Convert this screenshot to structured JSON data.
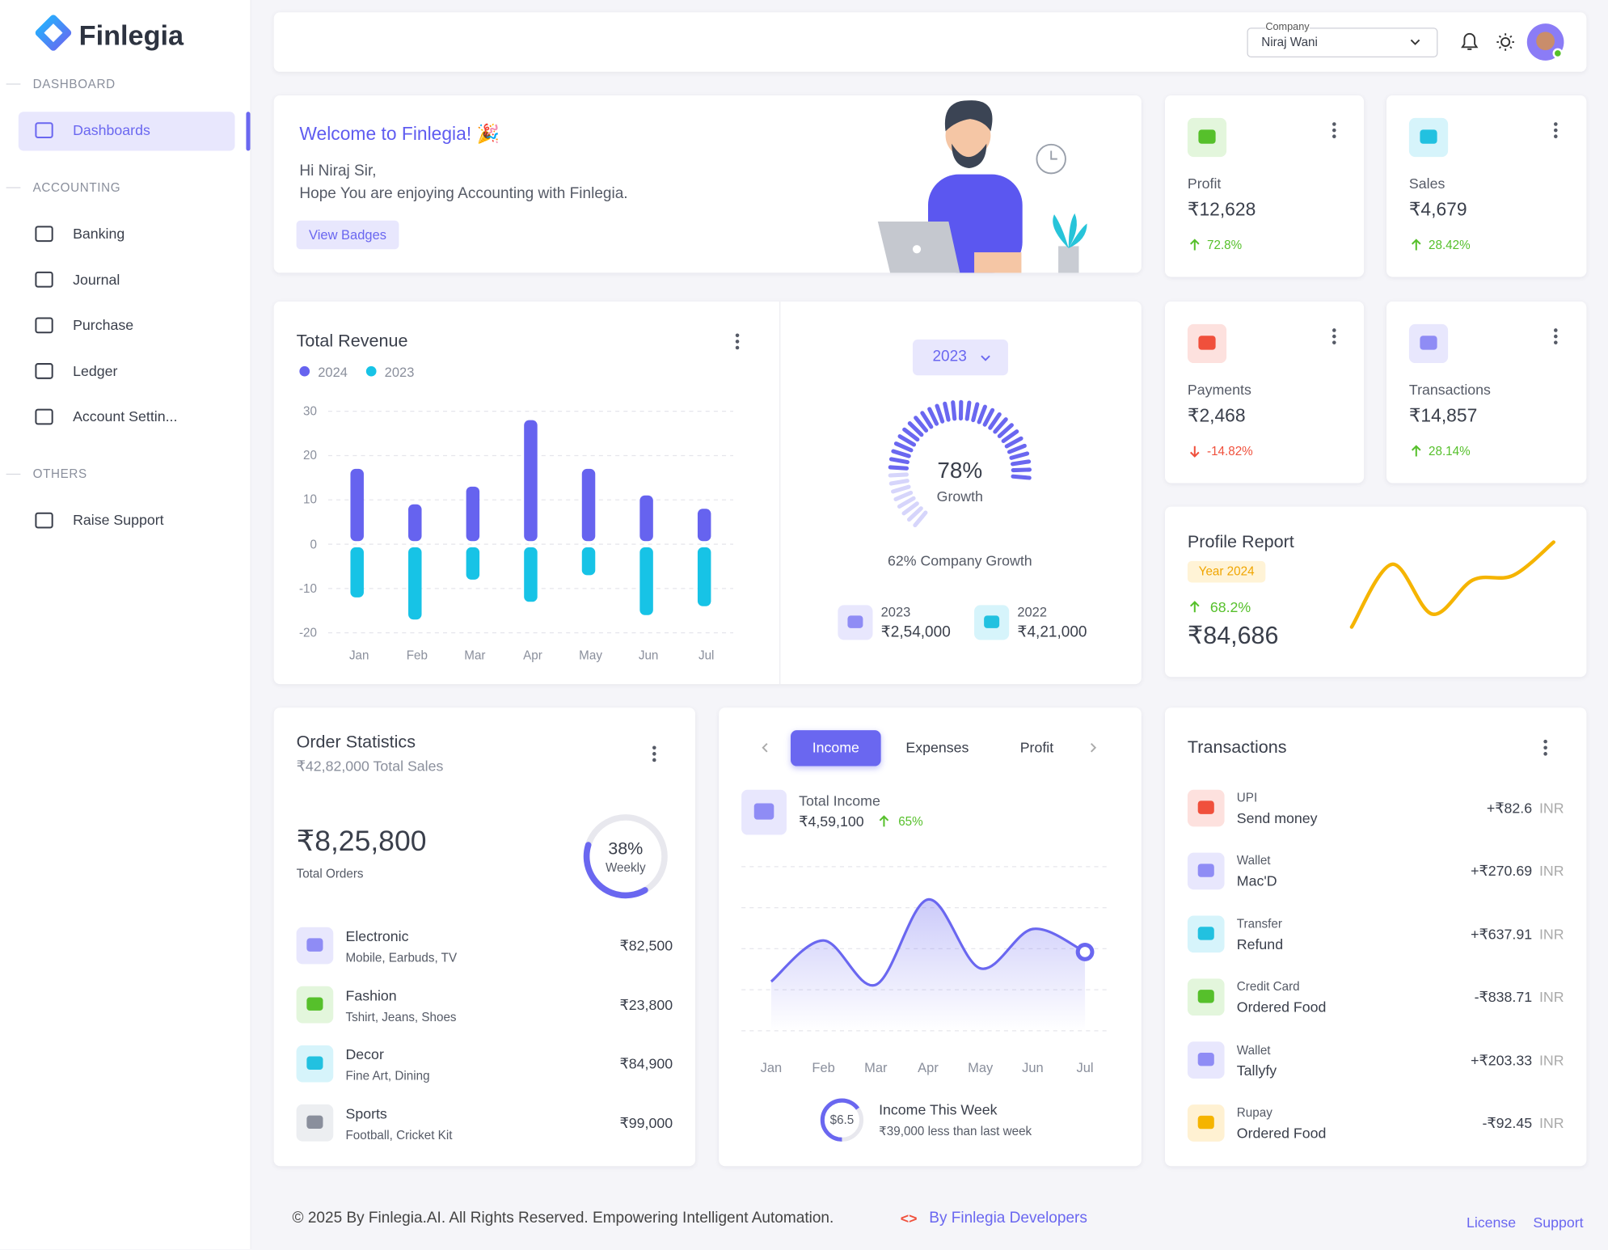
{
  "sidebar": {
    "brand": "Finlegia",
    "sections": [
      {
        "title": "DASHBOARD",
        "items": [
          "Dashboards"
        ]
      },
      {
        "title": "ACCOUNTING",
        "items": [
          "Banking",
          "Journal",
          "Purchase",
          "Ledger",
          "Account Settin..."
        ]
      },
      {
        "title": "OTHERS",
        "items": [
          "Raise Support"
        ]
      }
    ]
  },
  "header": {
    "company_label": "Company",
    "company": "Niraj Wani"
  },
  "welcome": {
    "title": "Welcome to Finlegia! 🎉",
    "greeting": "Hi Niraj Sir,",
    "message": "Hope You are enjoying Accounting with Finlegia.",
    "button": "View Badges"
  },
  "stat_cards": [
    {
      "label": "Profit",
      "value": "₹12,628",
      "change": "72.8%"
    },
    {
      "label": "Sales",
      "value": "₹4,679",
      "change": "28.42%"
    },
    {
      "label": "Payments",
      "value": "₹2,468",
      "change": "-14.82%"
    },
    {
      "label": "Transactions",
      "value": "₹14,857",
      "change": "28.14%"
    }
  ],
  "growth": {
    "year": "2023",
    "gauge": {
      "value": 78,
      "label": "78%"
    },
    "gauge_caption": "Growth",
    "caption": "62% Company Growth",
    "stats": [
      {
        "year": "2023",
        "amount": "₹2,54,000"
      },
      {
        "year": "2022",
        "amount": "₹4,21,000"
      }
    ]
  },
  "profile_report": {
    "title": "Profile Report",
    "year": "Year 2024",
    "change": "68.2%",
    "amount": "₹84,686"
  },
  "order_statistics": {
    "title": "Order Statistics",
    "subtitle": "₹42,82,000 Total Sales",
    "total": "₹8,25,800",
    "total_label": "Total Orders",
    "donut": {
      "value": 38,
      "label": "38%"
    },
    "donut_caption": "Weekly",
    "items": [
      {
        "name": "Electronic",
        "detail": "Mobile, Earbuds, TV",
        "amount": "₹82,500"
      },
      {
        "name": "Fashion",
        "detail": "Tshirt, Jeans, Shoes",
        "amount": "₹23,800"
      },
      {
        "name": "Decor",
        "detail": "Fine Art, Dining",
        "amount": "₹84,900"
      },
      {
        "name": "Sports",
        "detail": "Football, Cricket Kit",
        "amount": "₹99,000"
      }
    ]
  },
  "income": {
    "tabs": [
      "Income",
      "Expenses",
      "Profit"
    ],
    "total_label": "Total Income",
    "total": "₹4,59,100",
    "change": "65%",
    "week_badge": "$6.5",
    "week_title": "Income This Week",
    "week_note": "₹39,000 less than last week"
  },
  "transactions": {
    "title": "Transactions",
    "items": [
      {
        "method": "UPI",
        "desc": "Send money",
        "amount": "+₹82.6",
        "currency": "INR"
      },
      {
        "method": "Wallet",
        "desc": "Mac'D",
        "amount": "+₹270.69",
        "currency": "INR"
      },
      {
        "method": "Transfer",
        "desc": "Refund",
        "amount": "+₹637.91",
        "currency": "INR"
      },
      {
        "method": "Credit Card",
        "desc": "Ordered Food",
        "amount": "-₹838.71",
        "currency": "INR"
      },
      {
        "method": "Wallet",
        "desc": "Tallyfy",
        "amount": "+₹203.33",
        "currency": "INR"
      },
      {
        "method": "Rupay",
        "desc": "Ordered Food",
        "amount": "-₹92.45",
        "currency": "INR"
      }
    ]
  },
  "footer": {
    "copyright": "© 2025 By Finlegia.AI. All Rights Reserved. Empowering Intelligent Automation.",
    "code": "<>",
    "developers": "By Finlegia Developers",
    "links": [
      "License",
      "Support"
    ]
  },
  "chart_data": [
    {
      "type": "bar",
      "title": "Total Revenue",
      "categories": [
        "Jan",
        "Feb",
        "Mar",
        "Apr",
        "May",
        "Jun",
        "Jul"
      ],
      "series": [
        {
          "name": "2024",
          "color": "#6663ef",
          "values": [
            17,
            9,
            13,
            28,
            17,
            11,
            8
          ]
        },
        {
          "name": "2023",
          "color": "#17c3e6",
          "values": [
            -12,
            -17,
            -8,
            -13,
            -7,
            -16,
            -14
          ]
        }
      ],
      "ylim": [
        -20,
        30
      ],
      "yticks": [
        -20,
        -10,
        0,
        10,
        20,
        30
      ],
      "grid": true
    },
    {
      "type": "line",
      "categories": [
        "Jan",
        "Feb",
        "Mar",
        "Apr",
        "May",
        "Jun",
        "Jul"
      ],
      "values": [
        30,
        55,
        28,
        80,
        38,
        62,
        48
      ],
      "color": "#6a67f0",
      "ylim": [
        0,
        100
      ],
      "grid": true
    },
    {
      "type": "line",
      "values": [
        4,
        72,
        18,
        55,
        60,
        96
      ],
      "color": "#f5b400",
      "ylim": [
        0,
        100
      ],
      "grid": false
    }
  ]
}
